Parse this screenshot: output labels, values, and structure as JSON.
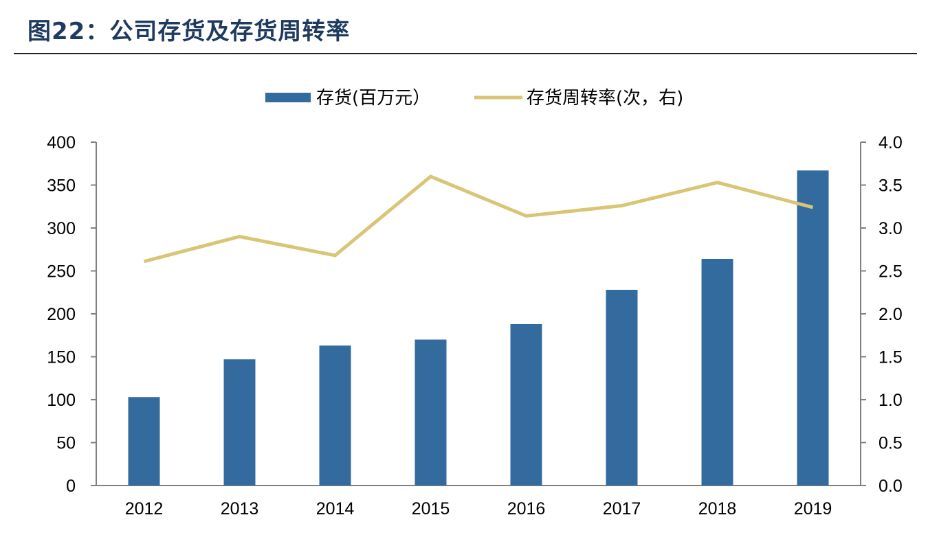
{
  "title": "图22：公司存货及存货周转率",
  "chart_data": {
    "type": "bar",
    "categories": [
      "2012",
      "2013",
      "2014",
      "2015",
      "2016",
      "2017",
      "2018",
      "2019"
    ],
    "series": [
      {
        "name": "存货(百万元）",
        "type": "bar",
        "axis": "left",
        "color": "#336b9f",
        "values": [
          103,
          147,
          163,
          170,
          188,
          228,
          264,
          367
        ]
      },
      {
        "name": "存货周转率(次，右)",
        "type": "line",
        "axis": "right",
        "color": "#d8c575",
        "values": [
          2.61,
          2.9,
          2.68,
          3.6,
          3.14,
          3.26,
          3.53,
          3.24
        ]
      }
    ],
    "y_left": {
      "min": 0,
      "max": 400,
      "ticks": [
        "0",
        "50",
        "100",
        "150",
        "200",
        "250",
        "300",
        "350",
        "400"
      ]
    },
    "y_right": {
      "min": 0,
      "max": 4,
      "ticks": [
        "0.0",
        "0.5",
        "1.0",
        "1.5",
        "2.0",
        "2.5",
        "3.0",
        "3.5",
        "4.0"
      ]
    },
    "legend_position": "top-center",
    "grid": false
  }
}
